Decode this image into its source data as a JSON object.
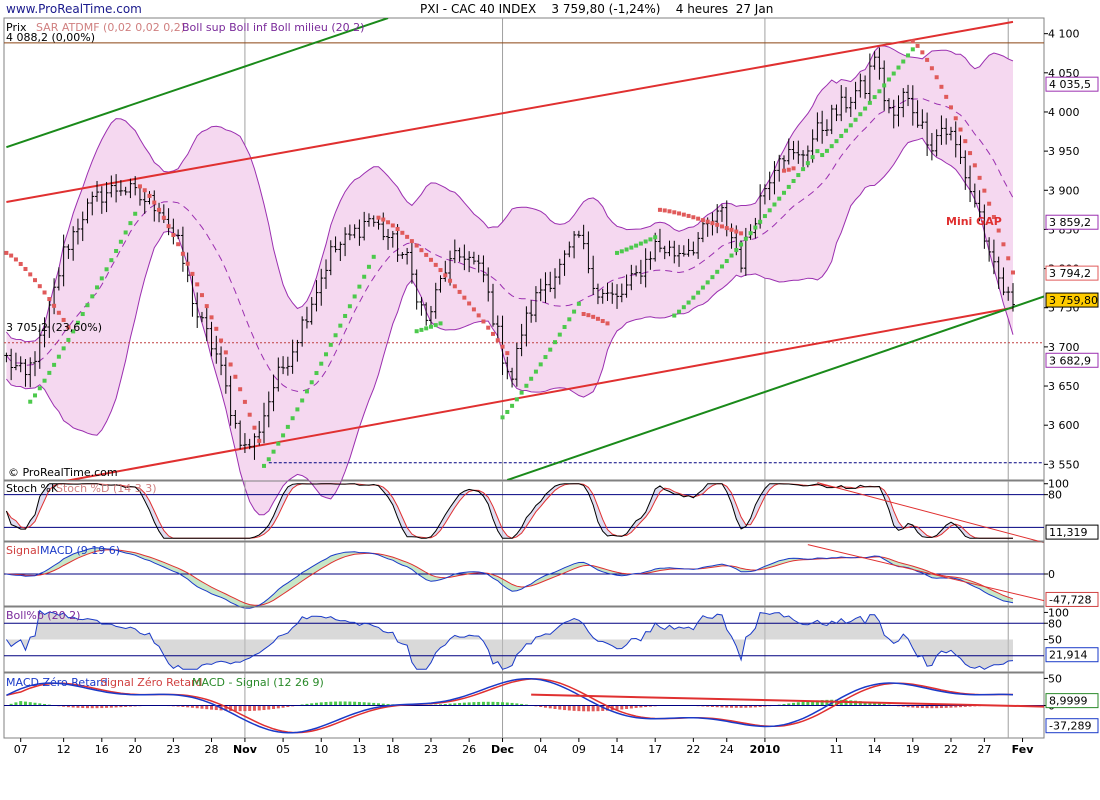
{
  "header": {
    "site": "www.ProRealTime.com",
    "title": "PXI - CAC 40 INDEX    3 759,80 (-1,24%)    4 heures  27 Jan",
    "copyright": "© ProRealTime.com"
  },
  "colors": {
    "background": "#ffffff",
    "band_fill": "#f5d8f0",
    "band_line": "#9b2fb0",
    "sar_red": "#e05a5a",
    "sar_green": "#4cc94c",
    "trend_red": "#e03030",
    "trend_green": "#1a8a1a",
    "candle": "#000000",
    "stoch_line": "#000000",
    "stoch_signal": "#e03030",
    "macd_line": "#1a3ac8",
    "macd_signal": "#e03030",
    "boll_line": "#1a3ac8",
    "ref_line": "#000080",
    "price_tag": "#ffcc00"
  },
  "chart_data": [
    {
      "name": "price",
      "type": "candlestick",
      "legend": {
        "prix": "Prix",
        "sar": "SAR ATDMF (0,02 0,02 0,2)",
        "boll": "Boll sup Boll inf Boll milieu (20 2)",
        "high_label": "4 088,2 (0,00%)",
        "ref_label": "3 705,2 (23,60%)"
      },
      "ylim": [
        3530,
        4120
      ],
      "y_ticks": [
        3550,
        3600,
        3650,
        3700,
        3750,
        3800,
        3850,
        3900,
        3950,
        4000,
        4050,
        4100
      ],
      "y_tick_labels": [
        "3 550",
        "3 600",
        "3 650",
        "3 700",
        "3 750",
        "3 800",
        "3 850",
        "3 900",
        "3 950",
        "4 000",
        "4 050",
        "4 100"
      ],
      "value_tags": [
        {
          "value": 4035.5,
          "label": "4 035,5",
          "kind": "band"
        },
        {
          "value": 3859.2,
          "label": "3 859,2",
          "kind": "band"
        },
        {
          "value": 3794.2,
          "label": "3 794,2",
          "kind": "sar"
        },
        {
          "value": 3759.8,
          "label": "3 759,80",
          "kind": "last"
        },
        {
          "value": 3682.9,
          "label": "3 682,9",
          "kind": "band"
        }
      ],
      "h_lines": [
        4088.2,
        3705.2,
        3552
      ],
      "annotation": "Mini GAP",
      "close_anchors": [
        [
          0,
          3685
        ],
        [
          4,
          3660
        ],
        [
          8,
          3720
        ],
        [
          12,
          3820
        ],
        [
          16,
          3870
        ],
        [
          20,
          3895
        ],
        [
          24,
          3905
        ],
        [
          28,
          3890
        ],
        [
          32,
          3880
        ],
        [
          36,
          3830
        ],
        [
          40,
          3740
        ],
        [
          44,
          3690
        ],
        [
          48,
          3600
        ],
        [
          50,
          3570
        ],
        [
          52,
          3580
        ],
        [
          56,
          3650
        ],
        [
          60,
          3700
        ],
        [
          64,
          3760
        ],
        [
          68,
          3820
        ],
        [
          72,
          3840
        ],
        [
          76,
          3865
        ],
        [
          80,
          3840
        ],
        [
          84,
          3810
        ],
        [
          88,
          3730
        ],
        [
          92,
          3800
        ],
        [
          96,
          3820
        ],
        [
          100,
          3790
        ],
        [
          104,
          3690
        ],
        [
          106,
          3660
        ],
        [
          108,
          3720
        ],
        [
          112,
          3775
        ],
        [
          116,
          3800
        ],
        [
          120,
          3840
        ],
        [
          124,
          3770
        ],
        [
          128,
          3760
        ],
        [
          132,
          3790
        ],
        [
          136,
          3830
        ],
        [
          140,
          3820
        ],
        [
          144,
          3830
        ],
        [
          148,
          3860
        ],
        [
          150,
          3870
        ],
        [
          154,
          3810
        ],
        [
          158,
          3890
        ],
        [
          162,
          3950
        ],
        [
          166,
          3940
        ],
        [
          170,
          3975
        ],
        [
          174,
          4000
        ],
        [
          178,
          4025
        ],
        [
          180,
          4030
        ],
        [
          182,
          4075
        ],
        [
          184,
          4020
        ],
        [
          186,
          3990
        ],
        [
          188,
          4020
        ],
        [
          190,
          4005
        ],
        [
          192,
          3980
        ],
        [
          194,
          3960
        ],
        [
          196,
          3980
        ],
        [
          198,
          3970
        ],
        [
          200,
          3940
        ],
        [
          202,
          3900
        ],
        [
          204,
          3870
        ],
        [
          206,
          3810
        ],
        [
          208,
          3785
        ],
        [
          210,
          3760
        ],
        [
          211,
          3760
        ]
      ],
      "sar_segments": [
        {
          "color": "red",
          "from": 0,
          "to": 13,
          "start": 3820,
          "end": 3725
        },
        {
          "color": "green",
          "from": 5,
          "to": 27,
          "start": 3630,
          "end": 3870
        },
        {
          "color": "red",
          "from": 28,
          "to": 53,
          "start": 3905,
          "end": 3580
        },
        {
          "color": "green",
          "from": 54,
          "to": 77,
          "start": 3548,
          "end": 3815
        },
        {
          "color": "red",
          "from": 78,
          "to": 105,
          "start": 3865,
          "end": 3692
        },
        {
          "color": "green",
          "from": 86,
          "to": 91,
          "start": 3720,
          "end": 3730
        },
        {
          "color": "green",
          "from": 104,
          "to": 120,
          "start": 3610,
          "end": 3755
        },
        {
          "color": "red",
          "from": 121,
          "to": 126,
          "start": 3742,
          "end": 3730
        },
        {
          "color": "green",
          "from": 128,
          "to": 136,
          "start": 3820,
          "end": 3840
        },
        {
          "color": "red",
          "from": 137,
          "to": 154,
          "start": 3875,
          "end": 3845
        },
        {
          "color": "green",
          "from": 140,
          "to": 170,
          "start": 3740,
          "end": 3950
        },
        {
          "color": "red",
          "from": 163,
          "to": 165,
          "start": 3925,
          "end": 3928
        },
        {
          "color": "green",
          "from": 171,
          "to": 190,
          "start": 3945,
          "end": 4080
        },
        {
          "color": "red",
          "from": 190,
          "to": 211,
          "start": 4090,
          "end": 3795
        }
      ],
      "trendlines": [
        {
          "color": "red",
          "p1": [
            0,
            3885
          ],
          "p2": [
            211,
            4115
          ]
        },
        {
          "color": "red",
          "p1": [
            0,
            3515
          ],
          "p2": [
            211,
            3750
          ]
        },
        {
          "color": "green",
          "p1": [
            0,
            3955
          ],
          "p2": [
            80,
            4120
          ]
        },
        {
          "color": "green",
          "p1": [
            105,
            3530
          ],
          "p2": [
            225,
            3780
          ]
        }
      ]
    },
    {
      "name": "stochastic",
      "type": "line",
      "legend": [
        "Stoch %K",
        "Stoch %D (14 3 3)"
      ],
      "ylim": [
        -5,
        105
      ],
      "y_ticks": [
        80,
        100
      ],
      "y_tick_labels": [
        "80",
        "100"
      ],
      "levels": [
        20,
        80
      ],
      "last_value": "11,319"
    },
    {
      "name": "macd",
      "type": "line",
      "legend": [
        "Signal",
        "MACD (9 19 6)"
      ],
      "ylim": [
        -60,
        60
      ],
      "y_ticks": [
        0
      ],
      "y_tick_labels": [
        "0"
      ],
      "last_value": "-47,728"
    },
    {
      "name": "bollinger_b",
      "type": "line",
      "legend": [
        "Boll%b (20 2)"
      ],
      "ylim": [
        -10,
        110
      ],
      "y_ticks": [
        50,
        80,
        100
      ],
      "y_tick_labels": [
        "50",
        "80",
        "100"
      ],
      "levels": [
        20,
        80
      ],
      "last_value": "21,914"
    },
    {
      "name": "macd_zero_lag",
      "type": "line",
      "legend": [
        "MACD Zéro Retard",
        "Signal Zéro Retard",
        "MACD - Signal (12 26 9)"
      ],
      "ylim": [
        -60,
        60
      ],
      "y_ticks": [
        0,
        50
      ],
      "y_tick_labels": [
        "0",
        "50"
      ],
      "last_values": [
        "8,9999",
        "-37,289"
      ]
    }
  ],
  "x_axis": {
    "labels": [
      {
        "bar": 3,
        "text": "07",
        "bold": false
      },
      {
        "bar": 12,
        "text": "12",
        "bold": false
      },
      {
        "bar": 20,
        "text": "16",
        "bold": false
      },
      {
        "bar": 27,
        "text": "20",
        "bold": false
      },
      {
        "bar": 35,
        "text": "23",
        "bold": false
      },
      {
        "bar": 43,
        "text": "28",
        "bold": false
      },
      {
        "bar": 50,
        "text": "Nov",
        "bold": true
      },
      {
        "bar": 58,
        "text": "05",
        "bold": false
      },
      {
        "bar": 66,
        "text": "10",
        "bold": false
      },
      {
        "bar": 74,
        "text": "13",
        "bold": false
      },
      {
        "bar": 81,
        "text": "18",
        "bold": false
      },
      {
        "bar": 89,
        "text": "23",
        "bold": false
      },
      {
        "bar": 97,
        "text": "26",
        "bold": false
      },
      {
        "bar": 104,
        "text": "Dec",
        "bold": true
      },
      {
        "bar": 112,
        "text": "04",
        "bold": false
      },
      {
        "bar": 120,
        "text": "09",
        "bold": false
      },
      {
        "bar": 128,
        "text": "14",
        "bold": false
      },
      {
        "bar": 136,
        "text": "17",
        "bold": false
      },
      {
        "bar": 144,
        "text": "22",
        "bold": false
      },
      {
        "bar": 151,
        "text": "24",
        "bold": false
      },
      {
        "bar": 159,
        "text": "2010",
        "bold": true
      },
      {
        "bar": 174,
        "text": "11",
        "bold": false
      },
      {
        "bar": 182,
        "text": "14",
        "bold": false
      },
      {
        "bar": 190,
        "text": "19",
        "bold": false
      },
      {
        "bar": 198,
        "text": "22",
        "bold": false
      },
      {
        "bar": 205,
        "text": "27",
        "bold": false
      },
      {
        "bar": 213,
        "text": "Fev",
        "bold": true
      }
    ],
    "separators": [
      50,
      104,
      159,
      210
    ]
  }
}
